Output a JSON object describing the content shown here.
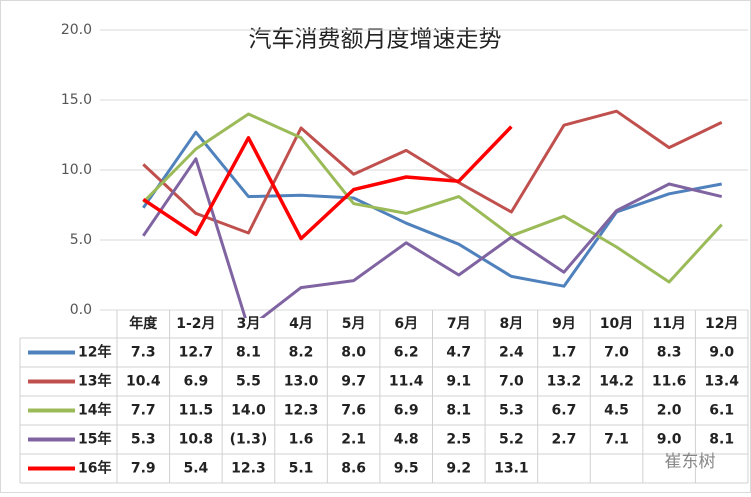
{
  "chart_data": {
    "type": "line",
    "title": "汽车消费额月度增速走势",
    "categories": [
      "年度",
      "1-2月",
      "3月",
      "4月",
      "5月",
      "6月",
      "7月",
      "8月",
      "9月",
      "10月",
      "11月",
      "12月"
    ],
    "ylim": [
      0,
      20
    ],
    "yticks": [
      {
        "value": 0,
        "label": "0.0"
      },
      {
        "value": 5,
        "label": "5.0"
      },
      {
        "value": 10,
        "label": "10.0"
      },
      {
        "value": 15,
        "label": "15.0"
      },
      {
        "value": 20,
        "label": "20.0"
      }
    ],
    "grid": true,
    "series": [
      {
        "name": "12年",
        "color": "#4f81bd",
        "values": [
          7.3,
          12.7,
          8.1,
          8.2,
          8.0,
          6.2,
          4.7,
          2.4,
          1.7,
          7.0,
          8.3,
          9.0
        ],
        "value_labels": [
          "7.3",
          "12.7",
          "8.1",
          "8.2",
          "8.0",
          "6.2",
          "4.7",
          "2.4",
          "1.7",
          "7.0",
          "8.3",
          "9.0"
        ]
      },
      {
        "name": "13年",
        "color": "#c0504d",
        "values": [
          10.4,
          6.9,
          5.5,
          13.0,
          9.7,
          11.4,
          9.1,
          7.0,
          13.2,
          14.2,
          11.6,
          13.4
        ],
        "value_labels": [
          "10.4",
          "6.9",
          "5.5",
          "13.0",
          "9.7",
          "11.4",
          "9.1",
          "7.0",
          "13.2",
          "14.2",
          "11.6",
          "13.4"
        ]
      },
      {
        "name": "14年",
        "color": "#9bbb59",
        "values": [
          7.7,
          11.5,
          14.0,
          12.3,
          7.6,
          6.9,
          8.1,
          5.3,
          6.7,
          4.5,
          2.0,
          6.1
        ],
        "value_labels": [
          "7.7",
          "11.5",
          "14.0",
          "12.3",
          "7.6",
          "6.9",
          "8.1",
          "5.3",
          "6.7",
          "4.5",
          "2.0",
          "6.1"
        ]
      },
      {
        "name": "15年",
        "color": "#8064a2",
        "values": [
          5.3,
          10.8,
          -1.3,
          1.6,
          2.1,
          4.8,
          2.5,
          5.2,
          2.7,
          7.1,
          9.0,
          8.1
        ],
        "value_labels": [
          "5.3",
          "10.8",
          "(1.3)",
          "1.6",
          "2.1",
          "4.8",
          "2.5",
          "5.2",
          "2.7",
          "7.1",
          "9.0",
          "8.1"
        ]
      },
      {
        "name": "16年",
        "color": "#ff0000",
        "values": [
          7.9,
          5.4,
          12.3,
          5.1,
          8.6,
          9.5,
          9.2,
          13.1,
          null,
          null,
          null,
          null
        ],
        "value_labels": [
          "7.9",
          "5.4",
          "12.3",
          "5.1",
          "8.6",
          "9.5",
          "9.2",
          "13.1",
          null,
          null,
          null,
          null
        ]
      }
    ],
    "watermark": "崔东树"
  }
}
